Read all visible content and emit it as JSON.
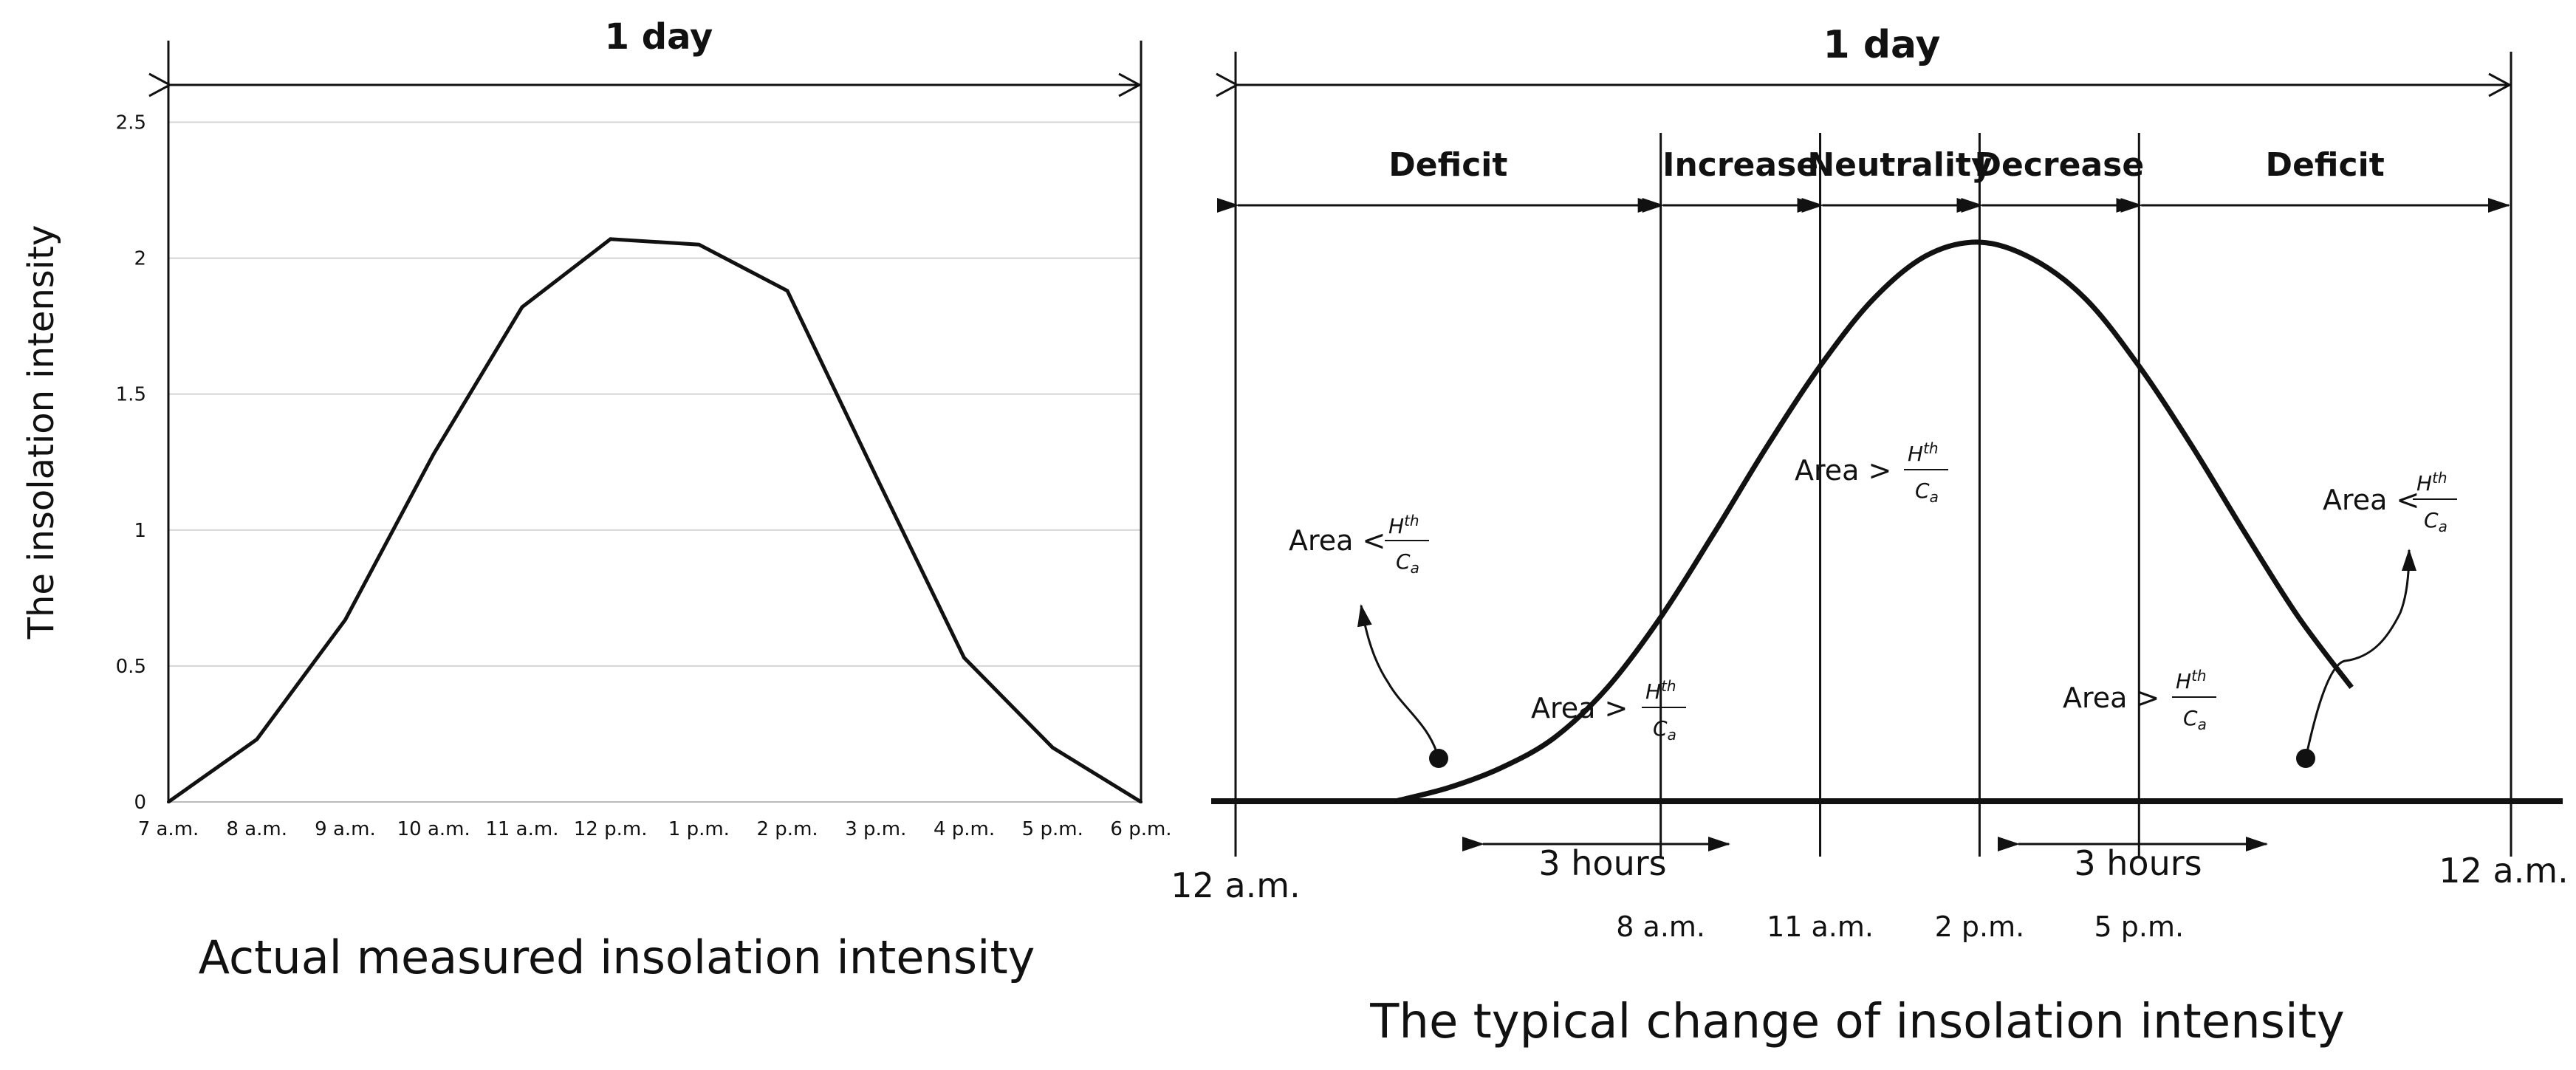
{
  "chart_data": [
    {
      "type": "line",
      "title": "1 day",
      "caption": "Actual measured insolation intensity",
      "xlabel": "",
      "ylabel": "The insolation intensity",
      "categories": [
        "7 a.m.",
        "8 a.m.",
        "9 a.m.",
        "10 a.m.",
        "11 a.m.",
        "12 p.m.",
        "1 p.m.",
        "2 p.m.",
        "3 p.m.",
        "4 p.m.",
        "5 p.m.",
        "6 p.m."
      ],
      "values": [
        0,
        0.23,
        0.67,
        1.28,
        1.82,
        2.07,
        2.05,
        1.88,
        1.2,
        0.53,
        0.2,
        0
      ],
      "y_ticks": [
        "0",
        "0.5",
        "1",
        "1.5",
        "2",
        "2.5"
      ],
      "ylim": [
        0,
        2.8
      ],
      "grid": true,
      "legend": "none"
    },
    {
      "type": "line",
      "title": "1 day",
      "caption": "The typical change of insolation intensity",
      "curve": {
        "x_hours": [
          3,
          4,
          5,
          6,
          7,
          8,
          9,
          10,
          11,
          12,
          13,
          14,
          15,
          16,
          17,
          18,
          19,
          20,
          21
        ],
        "y": [
          0,
          0.04,
          0.1,
          0.19,
          0.34,
          0.55,
          0.8,
          1.06,
          1.3,
          1.5,
          1.63,
          1.67,
          1.62,
          1.5,
          1.3,
          1.06,
          0.8,
          0.55,
          0.34
        ]
      },
      "x_edges": [
        "12 a.m.",
        "12 a.m."
      ],
      "x_boundaries": [
        {
          "label": "8 a.m.",
          "hour": 8
        },
        {
          "label": "11 a.m.",
          "hour": 11
        },
        {
          "label": "2 p.m.",
          "hour": 14
        },
        {
          "label": "5 p.m.",
          "hour": 17
        }
      ],
      "phases": [
        "Deficit",
        "Increase",
        "Neutrality",
        "Decrease",
        "Deficit"
      ],
      "intervals": [
        "3 hours",
        "3 hours"
      ],
      "annotations": {
        "area_less": "Area <",
        "area_greater": "Area >",
        "fraction_numerator": "H",
        "fraction_numerator_sup": "th",
        "fraction_denominator": "C",
        "fraction_denominator_sub": "a"
      }
    }
  ]
}
